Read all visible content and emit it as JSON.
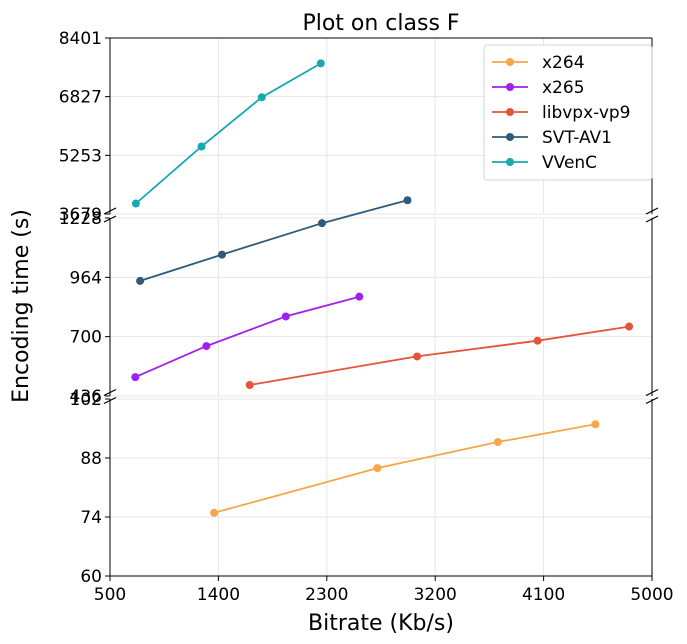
{
  "chart_data": {
    "type": "line",
    "title": "Plot on class F",
    "xlabel": "Bitrate (Kb/s)",
    "ylabel": "Encoding time (s)",
    "xlim": [
      500,
      5000
    ],
    "xticks": [
      "500",
      "1400",
      "2300",
      "3200",
      "4100",
      "5000"
    ],
    "broken_y_axis": true,
    "grid": true,
    "legend_position": "top-right",
    "panels": [
      {
        "id": "top",
        "ylim": [
          3679,
          8401
        ],
        "yticks": [
          "3679",
          "5253",
          "6827",
          "8401"
        ],
        "series": [
          "VVenC"
        ]
      },
      {
        "id": "middle",
        "ylim": [
          436,
          1228
        ],
        "yticks": [
          "436",
          "700",
          "964",
          "1228"
        ],
        "series": [
          "x265",
          "libvpx-vp9",
          "SVT-AV1"
        ]
      },
      {
        "id": "bottom",
        "ylim": [
          60,
          102
        ],
        "yticks": [
          "60",
          "74",
          "88",
          "102"
        ],
        "series": [
          "x264"
        ]
      }
    ],
    "series": [
      {
        "name": "x264",
        "color": "#f4a84a",
        "x": [
          1365,
          2720,
          3720,
          4530
        ],
        "y": [
          75.0,
          85.6,
          91.8,
          96.0
        ]
      },
      {
        "name": "x265",
        "color": "#a020f0",
        "x": [
          710,
          1300,
          1960,
          2570
        ],
        "y": [
          520,
          658,
          790,
          878
        ]
      },
      {
        "name": "libvpx-vp9",
        "color": "#e2553a",
        "x": [
          1660,
          3050,
          4050,
          4810
        ],
        "y": [
          485,
          612,
          682,
          745
        ]
      },
      {
        "name": "SVT-AV1",
        "color": "#2e5b7b",
        "x": [
          750,
          1430,
          2260,
          2970
        ],
        "y": [
          948,
          1065,
          1205,
          1307
        ]
      },
      {
        "name": "VVenC",
        "color": "#18a8b0",
        "x": [
          715,
          1260,
          1760,
          2250
        ],
        "y": [
          3960,
          5490,
          6810,
          7720
        ]
      }
    ]
  }
}
